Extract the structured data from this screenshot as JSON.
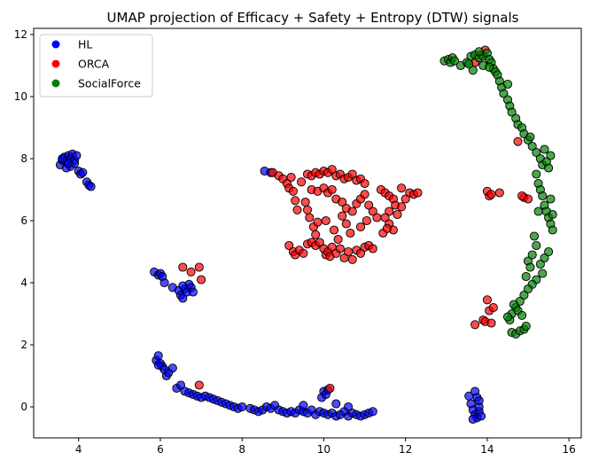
{
  "chart_data": {
    "type": "scatter",
    "title": "UMAP projection of Efficacy + Safety + Entropy (DTW) signals",
    "xlabel": "",
    "ylabel": "",
    "xlim": [
      2.9,
      16.3
    ],
    "ylim": [
      -1.0,
      12.2
    ],
    "xticks": [
      4,
      6,
      8,
      10,
      12,
      14,
      16
    ],
    "yticks": [
      0,
      2,
      4,
      6,
      8,
      10,
      12
    ],
    "grid": false,
    "legend_position": "top-left",
    "series": [
      {
        "name": "HL",
        "color": "#0000ff",
        "points": [
          [
            3.55,
            7.8
          ],
          [
            3.6,
            7.95
          ],
          [
            3.65,
            8.05
          ],
          [
            3.7,
            7.9
          ],
          [
            3.75,
            8.1
          ],
          [
            3.8,
            8.0
          ],
          [
            3.85,
            8.15
          ],
          [
            3.9,
            7.95
          ],
          [
            3.95,
            8.1
          ],
          [
            3.7,
            7.7
          ],
          [
            3.8,
            7.75
          ],
          [
            3.9,
            7.85
          ],
          [
            4.0,
            7.6
          ],
          [
            4.05,
            7.5
          ],
          [
            4.1,
            7.55
          ],
          [
            4.2,
            7.25
          ],
          [
            4.25,
            7.15
          ],
          [
            4.3,
            7.1
          ],
          [
            3.6,
            8.0
          ],
          [
            3.75,
            7.85
          ],
          [
            5.85,
            4.35
          ],
          [
            5.95,
            4.25
          ],
          [
            6.0,
            4.3
          ],
          [
            6.05,
            4.2
          ],
          [
            6.1,
            4.0
          ],
          [
            6.3,
            3.85
          ],
          [
            6.45,
            3.75
          ],
          [
            6.5,
            3.6
          ],
          [
            6.55,
            3.5
          ],
          [
            6.6,
            3.8
          ],
          [
            6.65,
            3.7
          ],
          [
            6.7,
            3.95
          ],
          [
            6.75,
            3.85
          ],
          [
            6.8,
            3.7
          ],
          [
            6.55,
            3.9
          ],
          [
            5.9,
            1.5
          ],
          [
            5.95,
            1.65
          ],
          [
            6.0,
            1.4
          ],
          [
            6.05,
            1.3
          ],
          [
            6.1,
            1.2
          ],
          [
            6.15,
            1.0
          ],
          [
            6.2,
            1.1
          ],
          [
            6.3,
            1.25
          ],
          [
            5.95,
            1.35
          ],
          [
            6.4,
            0.6
          ],
          [
            6.5,
            0.7
          ],
          [
            6.6,
            0.5
          ],
          [
            6.7,
            0.45
          ],
          [
            6.8,
            0.4
          ],
          [
            6.9,
            0.35
          ],
          [
            7.0,
            0.3
          ],
          [
            7.1,
            0.35
          ],
          [
            7.2,
            0.3
          ],
          [
            7.3,
            0.25
          ],
          [
            7.4,
            0.2
          ],
          [
            7.5,
            0.15
          ],
          [
            7.6,
            0.1
          ],
          [
            7.7,
            0.05
          ],
          [
            7.8,
            0.0
          ],
          [
            7.9,
            -0.05
          ],
          [
            8.0,
            0.0
          ],
          [
            8.2,
            -0.05
          ],
          [
            8.3,
            -0.1
          ],
          [
            8.4,
            -0.15
          ],
          [
            8.5,
            -0.1
          ],
          [
            8.6,
            0.0
          ],
          [
            8.7,
            -0.05
          ],
          [
            8.8,
            0.05
          ],
          [
            8.9,
            -0.1
          ],
          [
            9.0,
            -0.15
          ],
          [
            9.1,
            -0.2
          ],
          [
            9.2,
            -0.15
          ],
          [
            9.3,
            -0.2
          ],
          [
            9.4,
            -0.1
          ],
          [
            9.5,
            -0.15
          ],
          [
            9.6,
            -0.2
          ],
          [
            9.7,
            -0.1
          ],
          [
            9.8,
            -0.25
          ],
          [
            9.9,
            -0.15
          ],
          [
            10.0,
            -0.2
          ],
          [
            10.1,
            -0.25
          ],
          [
            10.2,
            -0.2
          ],
          [
            10.3,
            -0.3
          ],
          [
            10.4,
            -0.25
          ],
          [
            10.5,
            -0.15
          ],
          [
            10.6,
            -0.3
          ],
          [
            10.7,
            -0.2
          ],
          [
            10.8,
            -0.25
          ],
          [
            10.9,
            -0.3
          ],
          [
            11.0,
            -0.25
          ],
          [
            11.1,
            -0.2
          ],
          [
            11.2,
            -0.15
          ],
          [
            9.95,
            0.3
          ],
          [
            10.0,
            0.5
          ],
          [
            10.05,
            0.4
          ],
          [
            10.1,
            0.55
          ],
          [
            10.3,
            0.1
          ],
          [
            10.6,
            0.0
          ],
          [
            9.5,
            0.05
          ],
          [
            8.55,
            7.6
          ],
          [
            8.7,
            7.55
          ],
          [
            13.55,
            0.35
          ],
          [
            13.6,
            0.1
          ],
          [
            13.65,
            -0.1
          ],
          [
            13.7,
            -0.25
          ],
          [
            13.75,
            -0.35
          ],
          [
            13.8,
            -0.15
          ],
          [
            13.7,
            0.5
          ],
          [
            13.75,
            0.3
          ],
          [
            13.8,
            0.0
          ],
          [
            13.85,
            -0.3
          ],
          [
            13.65,
            -0.4
          ],
          [
            13.8,
            0.2
          ]
        ]
      },
      {
        "name": "ORCA",
        "color": "#ff0000",
        "points": [
          [
            8.75,
            7.55
          ],
          [
            8.9,
            7.45
          ],
          [
            9.0,
            7.35
          ],
          [
            9.1,
            7.2
          ],
          [
            9.15,
            7.05
          ],
          [
            9.2,
            7.4
          ],
          [
            9.25,
            6.95
          ],
          [
            9.3,
            6.65
          ],
          [
            9.35,
            6.35
          ],
          [
            9.45,
            7.25
          ],
          [
            9.55,
            6.6
          ],
          [
            9.6,
            6.35
          ],
          [
            9.65,
            6.1
          ],
          [
            9.75,
            5.8
          ],
          [
            9.8,
            5.55
          ],
          [
            9.85,
            5.95
          ],
          [
            9.6,
            7.5
          ],
          [
            9.7,
            7.45
          ],
          [
            9.8,
            7.55
          ],
          [
            9.9,
            7.5
          ],
          [
            10.0,
            7.6
          ],
          [
            10.1,
            7.55
          ],
          [
            10.2,
            7.65
          ],
          [
            10.3,
            7.45
          ],
          [
            10.4,
            7.5
          ],
          [
            10.5,
            7.35
          ],
          [
            10.6,
            7.4
          ],
          [
            10.7,
            7.5
          ],
          [
            10.8,
            7.3
          ],
          [
            10.9,
            7.35
          ],
          [
            11.0,
            7.2
          ],
          [
            9.7,
            7.0
          ],
          [
            9.85,
            6.95
          ],
          [
            10.0,
            7.05
          ],
          [
            10.1,
            6.9
          ],
          [
            10.2,
            7.0
          ],
          [
            10.3,
            6.7
          ],
          [
            10.45,
            6.6
          ],
          [
            10.55,
            6.4
          ],
          [
            10.7,
            6.3
          ],
          [
            10.8,
            6.55
          ],
          [
            10.9,
            6.7
          ],
          [
            11.0,
            6.85
          ],
          [
            11.1,
            6.5
          ],
          [
            11.2,
            6.3
          ],
          [
            11.3,
            6.1
          ],
          [
            11.4,
            7.0
          ],
          [
            11.5,
            6.9
          ],
          [
            11.6,
            6.8
          ],
          [
            11.7,
            6.7
          ],
          [
            11.75,
            6.5
          ],
          [
            11.6,
            6.3
          ],
          [
            11.5,
            6.1
          ],
          [
            11.6,
            5.9
          ],
          [
            11.7,
            5.7
          ],
          [
            11.8,
            6.2
          ],
          [
            11.9,
            6.45
          ],
          [
            12.0,
            6.7
          ],
          [
            12.1,
            6.9
          ],
          [
            12.2,
            6.85
          ],
          [
            12.3,
            6.9
          ],
          [
            11.9,
            7.05
          ],
          [
            11.45,
            5.6
          ],
          [
            11.55,
            5.75
          ],
          [
            9.15,
            5.2
          ],
          [
            9.25,
            5.0
          ],
          [
            9.3,
            4.9
          ],
          [
            9.4,
            5.05
          ],
          [
            9.5,
            4.95
          ],
          [
            9.6,
            5.25
          ],
          [
            9.7,
            5.3
          ],
          [
            9.8,
            5.2
          ],
          [
            9.9,
            5.3
          ],
          [
            10.0,
            5.1
          ],
          [
            10.05,
            4.9
          ],
          [
            10.1,
            5.0
          ],
          [
            10.15,
            4.85
          ],
          [
            10.2,
            5.15
          ],
          [
            10.3,
            4.95
          ],
          [
            10.4,
            5.1
          ],
          [
            10.5,
            4.8
          ],
          [
            10.6,
            5.0
          ],
          [
            10.7,
            4.75
          ],
          [
            10.8,
            5.05
          ],
          [
            10.9,
            4.95
          ],
          [
            11.0,
            5.15
          ],
          [
            11.1,
            5.2
          ],
          [
            11.2,
            5.1
          ],
          [
            10.05,
            6.0
          ],
          [
            10.25,
            5.7
          ],
          [
            10.35,
            5.4
          ],
          [
            10.55,
            5.9
          ],
          [
            10.65,
            5.6
          ],
          [
            10.45,
            6.15
          ],
          [
            11.05,
            6.0
          ],
          [
            10.9,
            5.8
          ],
          [
            6.55,
            4.5
          ],
          [
            6.75,
            4.35
          ],
          [
            6.95,
            4.5
          ],
          [
            7.0,
            4.1
          ],
          [
            6.95,
            0.7
          ],
          [
            10.15,
            0.6
          ],
          [
            13.7,
            11.1
          ],
          [
            13.85,
            11.35
          ],
          [
            13.95,
            11.5
          ],
          [
            14.75,
            8.55
          ],
          [
            14.05,
            6.8
          ],
          [
            14.0,
            6.95
          ],
          [
            14.3,
            6.9
          ],
          [
            14.1,
            6.85
          ],
          [
            14.9,
            6.75
          ],
          [
            15.0,
            6.7
          ],
          [
            14.85,
            6.8
          ],
          [
            13.9,
            2.8
          ],
          [
            13.95,
            2.75
          ],
          [
            14.05,
            3.1
          ],
          [
            14.0,
            3.45
          ],
          [
            13.7,
            2.65
          ],
          [
            14.1,
            2.7
          ],
          [
            14.15,
            3.2
          ]
        ]
      },
      {
        "name": "SocialForce",
        "color": "#008000",
        "points": [
          [
            12.95,
            11.15
          ],
          [
            13.05,
            11.2
          ],
          [
            13.1,
            11.1
          ],
          [
            13.15,
            11.25
          ],
          [
            13.2,
            11.15
          ],
          [
            13.35,
            11.0
          ],
          [
            13.5,
            11.1
          ],
          [
            13.6,
            11.3
          ],
          [
            13.7,
            11.35
          ],
          [
            13.8,
            11.25
          ],
          [
            13.9,
            11.3
          ],
          [
            14.0,
            11.4
          ],
          [
            14.05,
            11.2
          ],
          [
            14.1,
            11.1
          ],
          [
            14.15,
            10.9
          ],
          [
            14.2,
            10.8
          ],
          [
            13.65,
            10.85
          ],
          [
            13.9,
            11.0
          ],
          [
            14.25,
            10.7
          ],
          [
            14.3,
            10.5
          ],
          [
            14.35,
            10.3
          ],
          [
            14.4,
            10.1
          ],
          [
            14.5,
            9.9
          ],
          [
            14.55,
            9.7
          ],
          [
            14.6,
            9.5
          ],
          [
            14.7,
            9.3
          ],
          [
            14.75,
            9.1
          ],
          [
            14.85,
            9.0
          ],
          [
            14.9,
            8.8
          ],
          [
            15.0,
            8.6
          ],
          [
            15.1,
            8.4
          ],
          [
            15.2,
            8.2
          ],
          [
            15.3,
            8.0
          ],
          [
            15.35,
            7.8
          ],
          [
            15.4,
            8.3
          ],
          [
            15.45,
            7.9
          ],
          [
            15.5,
            7.7
          ],
          [
            15.55,
            8.1
          ],
          [
            15.2,
            7.5
          ],
          [
            15.25,
            7.2
          ],
          [
            15.3,
            7.0
          ],
          [
            15.35,
            6.8
          ],
          [
            15.4,
            6.5
          ],
          [
            15.45,
            6.3
          ],
          [
            15.5,
            6.1
          ],
          [
            15.55,
            5.9
          ],
          [
            15.6,
            6.2
          ],
          [
            15.6,
            5.7
          ],
          [
            15.55,
            6.7
          ],
          [
            15.15,
            5.5
          ],
          [
            15.2,
            5.2
          ],
          [
            15.1,
            4.9
          ],
          [
            15.0,
            4.7
          ],
          [
            15.3,
            4.6
          ],
          [
            15.4,
            4.8
          ],
          [
            15.5,
            5.0
          ],
          [
            15.35,
            4.3
          ],
          [
            15.2,
            4.1
          ],
          [
            15.1,
            3.95
          ],
          [
            15.0,
            3.8
          ],
          [
            14.9,
            3.6
          ],
          [
            14.8,
            3.4
          ],
          [
            14.7,
            3.2
          ],
          [
            14.6,
            3.0
          ],
          [
            14.55,
            2.8
          ],
          [
            14.5,
            2.9
          ],
          [
            14.6,
            2.4
          ],
          [
            14.7,
            2.35
          ],
          [
            14.8,
            2.45
          ],
          [
            14.9,
            2.5
          ],
          [
            14.95,
            2.6
          ],
          [
            14.65,
            3.3
          ],
          [
            14.75,
            3.1
          ],
          [
            14.85,
            2.95
          ],
          [
            14.95,
            4.2
          ],
          [
            15.05,
            4.5
          ],
          [
            15.25,
            6.3
          ],
          [
            15.05,
            8.7
          ],
          [
            14.5,
            10.4
          ],
          [
            14.05,
            10.95
          ],
          [
            13.8,
            11.45
          ],
          [
            13.55,
            11.05
          ]
        ]
      }
    ]
  }
}
